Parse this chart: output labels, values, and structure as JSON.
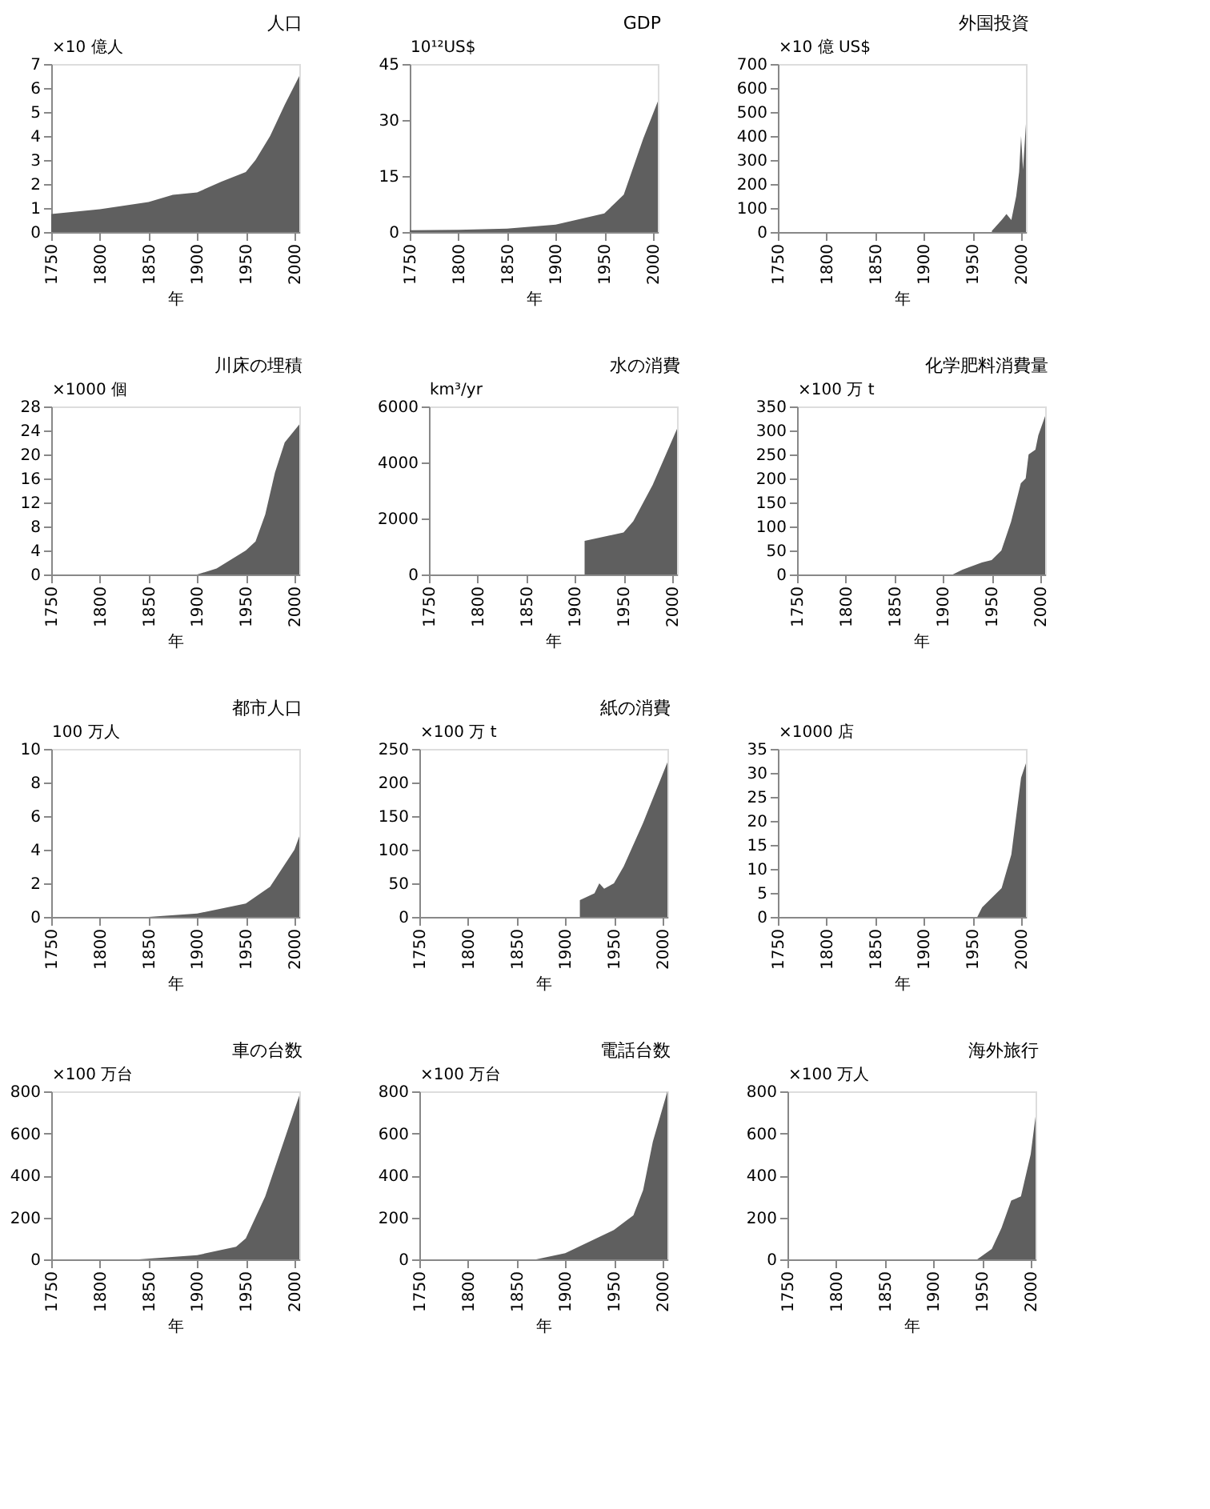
{
  "chart_data": [
    {
      "type": "area",
      "title": "人口",
      "ylabel": "×10 億人",
      "xlabel": "年",
      "color": "#5f5f5f",
      "x": [
        1750,
        1800,
        1850,
        1875,
        1900,
        1925,
        1950,
        1960,
        1975,
        1990,
        2000,
        2005
      ],
      "values": [
        0.75,
        0.95,
        1.25,
        1.55,
        1.65,
        2.1,
        2.5,
        3.0,
        4.0,
        5.3,
        6.1,
        6.5
      ],
      "xlim": [
        1750,
        2005
      ],
      "xticks": [
        1750,
        1800,
        1850,
        1900,
        1950,
        2000
      ],
      "ylim": [
        0,
        7
      ],
      "yticks": [
        0,
        1,
        2,
        3,
        4,
        5,
        6,
        7
      ],
      "grid": false
    },
    {
      "type": "area",
      "title": "GDP",
      "ylabel": "10¹²US$",
      "xlabel": "年",
      "color": "#5f5f5f",
      "x": [
        1750,
        1800,
        1850,
        1900,
        1950,
        1970,
        1990,
        2005
      ],
      "values": [
        0.5,
        0.6,
        0.9,
        2,
        5,
        10,
        25,
        35
      ],
      "xlim": [
        1750,
        2005
      ],
      "xticks": [
        1750,
        1800,
        1850,
        1900,
        1950,
        2000
      ],
      "ylim": [
        0,
        45
      ],
      "yticks": [
        0,
        15,
        30,
        45
      ],
      "grid": false
    },
    {
      "type": "area",
      "title": "外国投資",
      "ylabel": "×10 億 US$",
      "xlabel": "年",
      "color": "#5f5f5f",
      "x": [
        1970,
        1980,
        1985,
        1990,
        1995,
        1998,
        2000,
        2002,
        2005
      ],
      "values": [
        5,
        50,
        75,
        50,
        150,
        250,
        400,
        260,
        450
      ],
      "xlim": [
        1750,
        2005
      ],
      "xticks": [
        1750,
        1800,
        1850,
        1900,
        1950,
        2000
      ],
      "ylim": [
        0,
        700
      ],
      "yticks": [
        0,
        100,
        200,
        300,
        400,
        500,
        600,
        700
      ],
      "grid": false
    },
    {
      "type": "area",
      "title": "川床の埋積",
      "ylabel": "×1000 個",
      "xlabel": "年",
      "color": "#5f5f5f",
      "x": [
        1900,
        1920,
        1950,
        1960,
        1970,
        1980,
        1990,
        2005
      ],
      "values": [
        0,
        1,
        4,
        5.5,
        10,
        17,
        22,
        25
      ],
      "xlim": [
        1750,
        2005
      ],
      "xticks": [
        1750,
        1800,
        1850,
        1900,
        1950,
        2000
      ],
      "ylim": [
        0,
        28
      ],
      "yticks": [
        0,
        4,
        8,
        12,
        16,
        20,
        24,
        28
      ],
      "grid": false
    },
    {
      "type": "area",
      "title": "水の消費",
      "ylabel": "km³/yr",
      "xlabel": "年",
      "color": "#5f5f5f",
      "x": [
        1910,
        1950,
        1960,
        1980,
        2005
      ],
      "values": [
        1200,
        1500,
        1900,
        3200,
        5200
      ],
      "xlim": [
        1750,
        2005
      ],
      "xticks": [
        1750,
        1800,
        1850,
        1900,
        1950,
        2000
      ],
      "ylim": [
        0,
        6000
      ],
      "yticks": [
        0,
        2000,
        4000,
        6000
      ],
      "grid": false
    },
    {
      "type": "area",
      "title": "化学肥料消費量",
      "ylabel": "×100 万 t",
      "xlabel": "年",
      "color": "#5f5f5f",
      "x": [
        1910,
        1920,
        1940,
        1950,
        1960,
        1970,
        1980,
        1985,
        1988,
        1995,
        1998,
        2005
      ],
      "values": [
        0,
        10,
        25,
        30,
        50,
        110,
        190,
        200,
        250,
        260,
        290,
        330
      ],
      "xlim": [
        1750,
        2005
      ],
      "xticks": [
        1750,
        1800,
        1850,
        1900,
        1950,
        2000
      ],
      "ylim": [
        0,
        350
      ],
      "yticks": [
        0,
        50,
        100,
        150,
        200,
        250,
        300,
        350
      ],
      "grid": false
    },
    {
      "type": "area",
      "title": "都市人口",
      "ylabel": "100 万人",
      "xlabel": "年",
      "color": "#5f5f5f",
      "x": [
        1850,
        1900,
        1950,
        1975,
        2000,
        2005
      ],
      "values": [
        0,
        0.2,
        0.8,
        1.8,
        4,
        4.8
      ],
      "xlim": [
        1750,
        2005
      ],
      "xticks": [
        1750,
        1800,
        1850,
        1900,
        1950,
        2000
      ],
      "ylim": [
        0,
        10
      ],
      "yticks": [
        0,
        2,
        4,
        6,
        8,
        10
      ],
      "grid": false
    },
    {
      "type": "area",
      "title": "紙の消費",
      "ylabel": "×100 万 t",
      "xlabel": "年",
      "color": "#5f5f5f",
      "x": [
        1915,
        1930,
        1935,
        1940,
        1950,
        1960,
        1980,
        2005
      ],
      "values": [
        25,
        35,
        50,
        42,
        50,
        75,
        140,
        230
      ],
      "xlim": [
        1750,
        2005
      ],
      "xticks": [
        1750,
        1800,
        1850,
        1900,
        1950,
        2000
      ],
      "ylim": [
        0,
        250
      ],
      "yticks": [
        0,
        50,
        100,
        150,
        200,
        250
      ],
      "grid": false
    },
    {
      "type": "area",
      "ylabel": "×1000 店",
      "xlabel": "年",
      "color": "#5f5f5f",
      "x": [
        1955,
        1960,
        1970,
        1980,
        1990,
        2000,
        2005
      ],
      "values": [
        0,
        2,
        4,
        6,
        13,
        29,
        32
      ],
      "xlim": [
        1750,
        2005
      ],
      "xticks": [
        1750,
        1800,
        1850,
        1900,
        1950,
        2000
      ],
      "ylim": [
        0,
        35
      ],
      "yticks": [
        0,
        5,
        10,
        15,
        20,
        25,
        30,
        35
      ],
      "grid": false
    },
    {
      "type": "area",
      "title": "車の台数",
      "ylabel": "×100 万台",
      "xlabel": "年",
      "color": "#5f5f5f",
      "x": [
        1840,
        1900,
        1940,
        1950,
        1970,
        2005
      ],
      "values": [
        0,
        20,
        60,
        100,
        300,
        780
      ],
      "xlim": [
        1750,
        2005
      ],
      "xticks": [
        1750,
        1800,
        1850,
        1900,
        1950,
        2000
      ],
      "ylim": [
        0,
        800
      ],
      "yticks": [
        0,
        200,
        400,
        600,
        800
      ],
      "grid": false
    },
    {
      "type": "area",
      "title": "電話台数",
      "ylabel": "×100 万台",
      "xlabel": "年",
      "color": "#5f5f5f",
      "x": [
        1870,
        1900,
        1950,
        1970,
        1980,
        1990,
        2005
      ],
      "values": [
        0,
        30,
        140,
        210,
        330,
        560,
        800
      ],
      "xlim": [
        1750,
        2005
      ],
      "xticks": [
        1750,
        1800,
        1850,
        1900,
        1950,
        2000
      ],
      "ylim": [
        0,
        800
      ],
      "yticks": [
        0,
        200,
        400,
        600,
        800
      ],
      "grid": false
    },
    {
      "type": "area",
      "title": "海外旅行",
      "ylabel": "×100 万人",
      "xlabel": "年",
      "color": "#5f5f5f",
      "x": [
        1945,
        1960,
        1970,
        1980,
        1990,
        2000,
        2005
      ],
      "values": [
        0,
        50,
        150,
        280,
        300,
        500,
        680
      ],
      "xlim": [
        1750,
        2005
      ],
      "xticks": [
        1750,
        1800,
        1850,
        1900,
        1950,
        2000
      ],
      "ylim": [
        0,
        800
      ],
      "yticks": [
        0,
        200,
        400,
        600,
        800
      ],
      "grid": false
    }
  ]
}
